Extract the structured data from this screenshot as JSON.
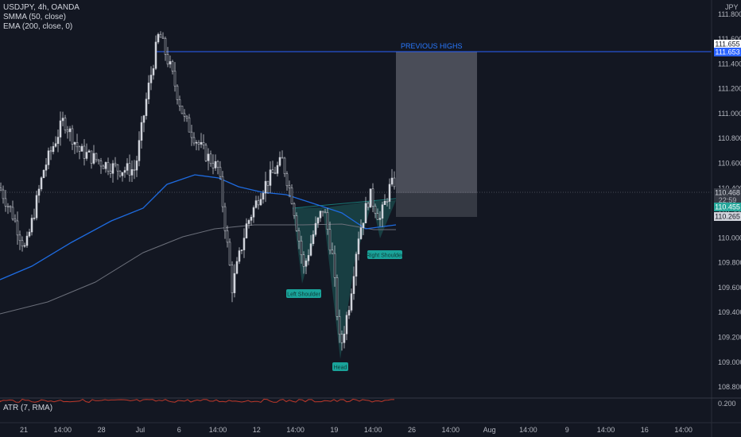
{
  "legend": {
    "symbol": "USDJPY, 4h, OANDA",
    "smma": "SMMA (50, close)",
    "ema": "EMA (200, close, 0)"
  },
  "atr": {
    "label": "ATR (7, RMA)",
    "value": "0.200"
  },
  "currency": "JPY",
  "annotations": {
    "previous_highs": "PREVIOUS HIGHS",
    "left_shoulder": "Left Shoulder",
    "head": "Head",
    "right_shoulder": "Right Shoulder"
  },
  "price_badges": {
    "p1": "111.655",
    "p2": "111.653",
    "current": "110.468",
    "countdown": "22:59",
    "p3": "110.455",
    "p4": "110.265"
  },
  "colors": {
    "background": "#131722",
    "up": "#d1d4dc",
    "down": "#d1d4dc",
    "smma": "#1e6be0",
    "ema": "#6b6f7a",
    "highs_line": "#2962ff",
    "pattern_fill": "#1f6f6a",
    "label_bg": "#1aa39a",
    "atr": "#c0392b"
  },
  "chart_data": {
    "type": "candlestick",
    "y_ticks": [
      "111.800",
      "111.600",
      "111.400",
      "111.200",
      "111.000",
      "110.800",
      "110.600",
      "110.400",
      "110.200",
      "110.000",
      "109.800",
      "109.600",
      "109.400",
      "109.200",
      "109.000",
      "108.800"
    ],
    "ylim": [
      108.73,
      111.85
    ],
    "x_ticks": [
      "21",
      "14:00",
      "28",
      "Jul",
      "6",
      "14:00",
      "12",
      "14:00",
      "19",
      "14:00",
      "26",
      "14:00",
      "Aug",
      "14:00",
      "9",
      "14:00",
      "16",
      "14:00"
    ],
    "ohlc_keypoints": [
      {
        "x_label": "start",
        "price": 110.4
      },
      {
        "x_label": "28",
        "price": 109.9
      },
      {
        "x_label": "Jul",
        "price": 111.65
      },
      {
        "x_label": "6",
        "price": 110.7
      },
      {
        "x_label": "12",
        "price": 109.6
      },
      {
        "x_label": "14:00",
        "price": 110.62
      },
      {
        "x_label": "left_shoulder",
        "price": 109.7
      },
      {
        "x_label": "head",
        "price": 109.08
      },
      {
        "x_label": "right_shoulder",
        "price": 110.08
      },
      {
        "x_label": "last",
        "price": 110.468
      }
    ],
    "projection_box": {
      "top": 111.653,
      "entry": 110.468,
      "bottom": 110.265
    }
  }
}
